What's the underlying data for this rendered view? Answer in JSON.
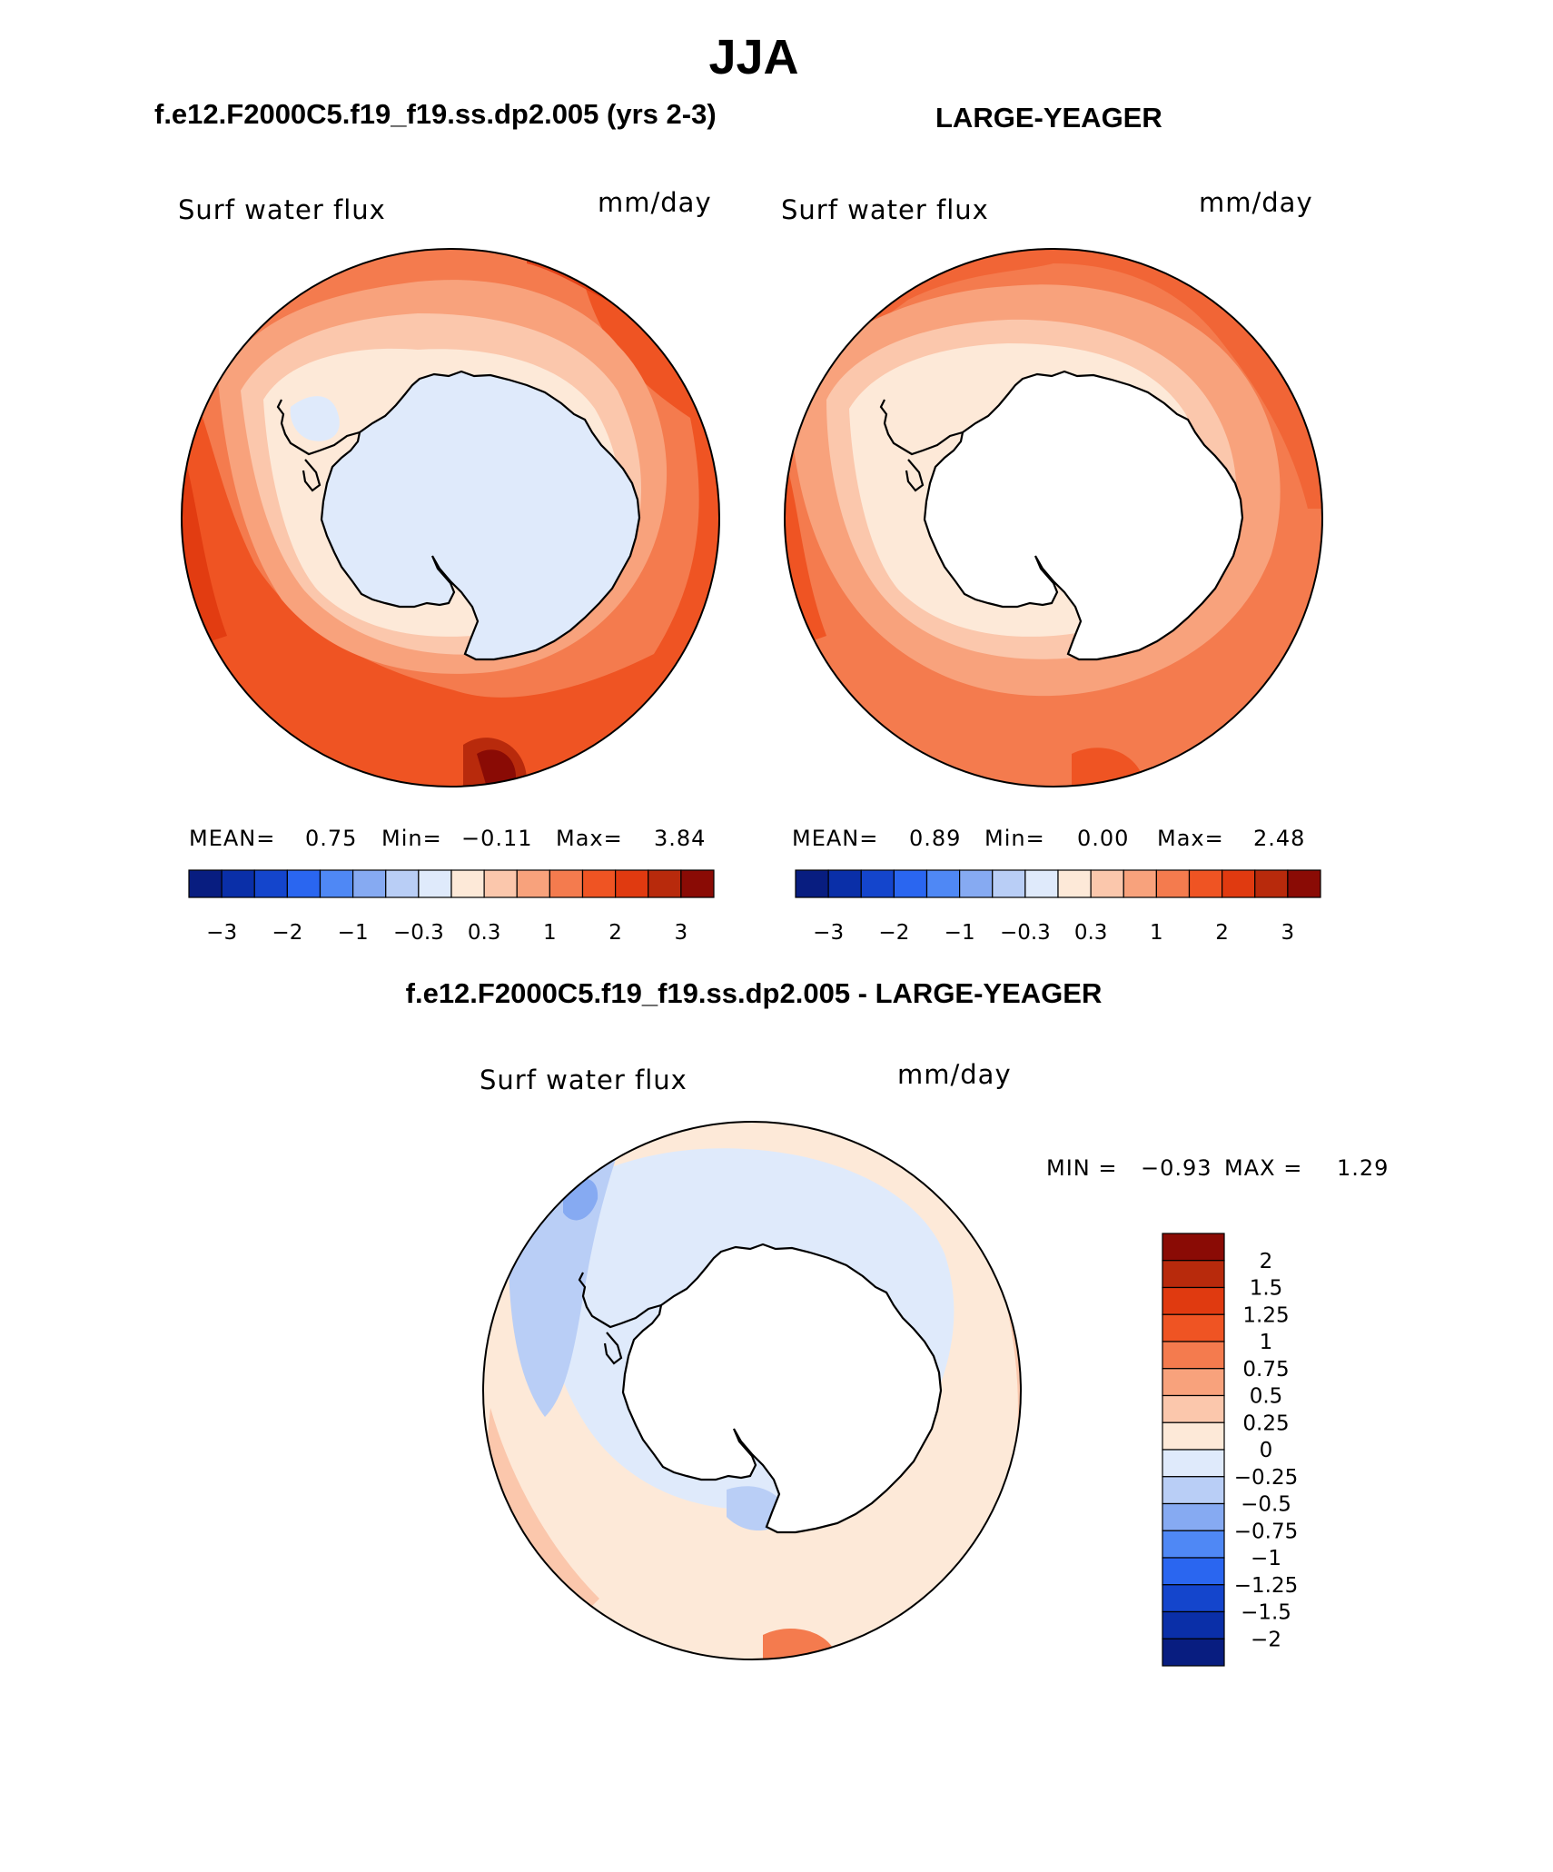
{
  "figure": {
    "season": "JJA",
    "left_title": "f.e12.F2000C5.f19_f19.ss.dp2.005 (yrs 2-3)",
    "right_title": "LARGE-YEAGER",
    "diff_title": "f.e12.F2000C5.f19_f19.ss.dp2.005 - LARGE-YEAGER"
  },
  "panels": [
    {
      "variable": "Surf water flux",
      "units": "mm/day",
      "stats": {
        "mean_label": "MEAN=",
        "mean": "0.75",
        "min_label": "Min=",
        "min": "−0.11",
        "max_label": "Max=",
        "max": "3.84"
      }
    },
    {
      "variable": "Surf water flux",
      "units": "mm/day",
      "stats": {
        "mean_label": "MEAN=",
        "mean": "0.89",
        "min_label": "Min=",
        "min": "0.00",
        "max_label": "Max=",
        "max": "2.48"
      }
    },
    {
      "variable": "Surf water flux",
      "units": "mm/day",
      "stats": {
        "min_label": "MIN =",
        "min": "−0.93",
        "max_label": "MAX =",
        "max": "1.29"
      }
    }
  ],
  "colorbar_abs": {
    "colors": [
      "#081d80",
      "#0a2fa8",
      "#1445cc",
      "#2a66f0",
      "#4f88f5",
      "#86aaf2",
      "#b9cef6",
      "#dfeafb",
      "#fde9d8",
      "#fbc7ac",
      "#f8a27c",
      "#f47b4e",
      "#ef5423",
      "#e03a10",
      "#b82a0c",
      "#8a0b05"
    ],
    "ticks": [
      "−3",
      "−2",
      "−1",
      "−0.3",
      "0.3",
      "1",
      "2",
      "3"
    ]
  },
  "colorbar_diff": {
    "colors": [
      "#8a0b05",
      "#b82a0c",
      "#e03a10",
      "#ef5423",
      "#f47b4e",
      "#f8a27c",
      "#fbc7ac",
      "#fde9d8",
      "#dfeafb",
      "#b9cef6",
      "#86aaf2",
      "#4f88f5",
      "#2a66f0",
      "#1445cc",
      "#0a2fa8",
      "#081d80"
    ],
    "ticks": [
      "2",
      "1.5",
      "1.25",
      "1",
      "0.75",
      "0.5",
      "0.25",
      "0",
      "−0.25",
      "−0.5",
      "−0.75",
      "−1",
      "−1.25",
      "−1.5",
      "−2"
    ]
  }
}
